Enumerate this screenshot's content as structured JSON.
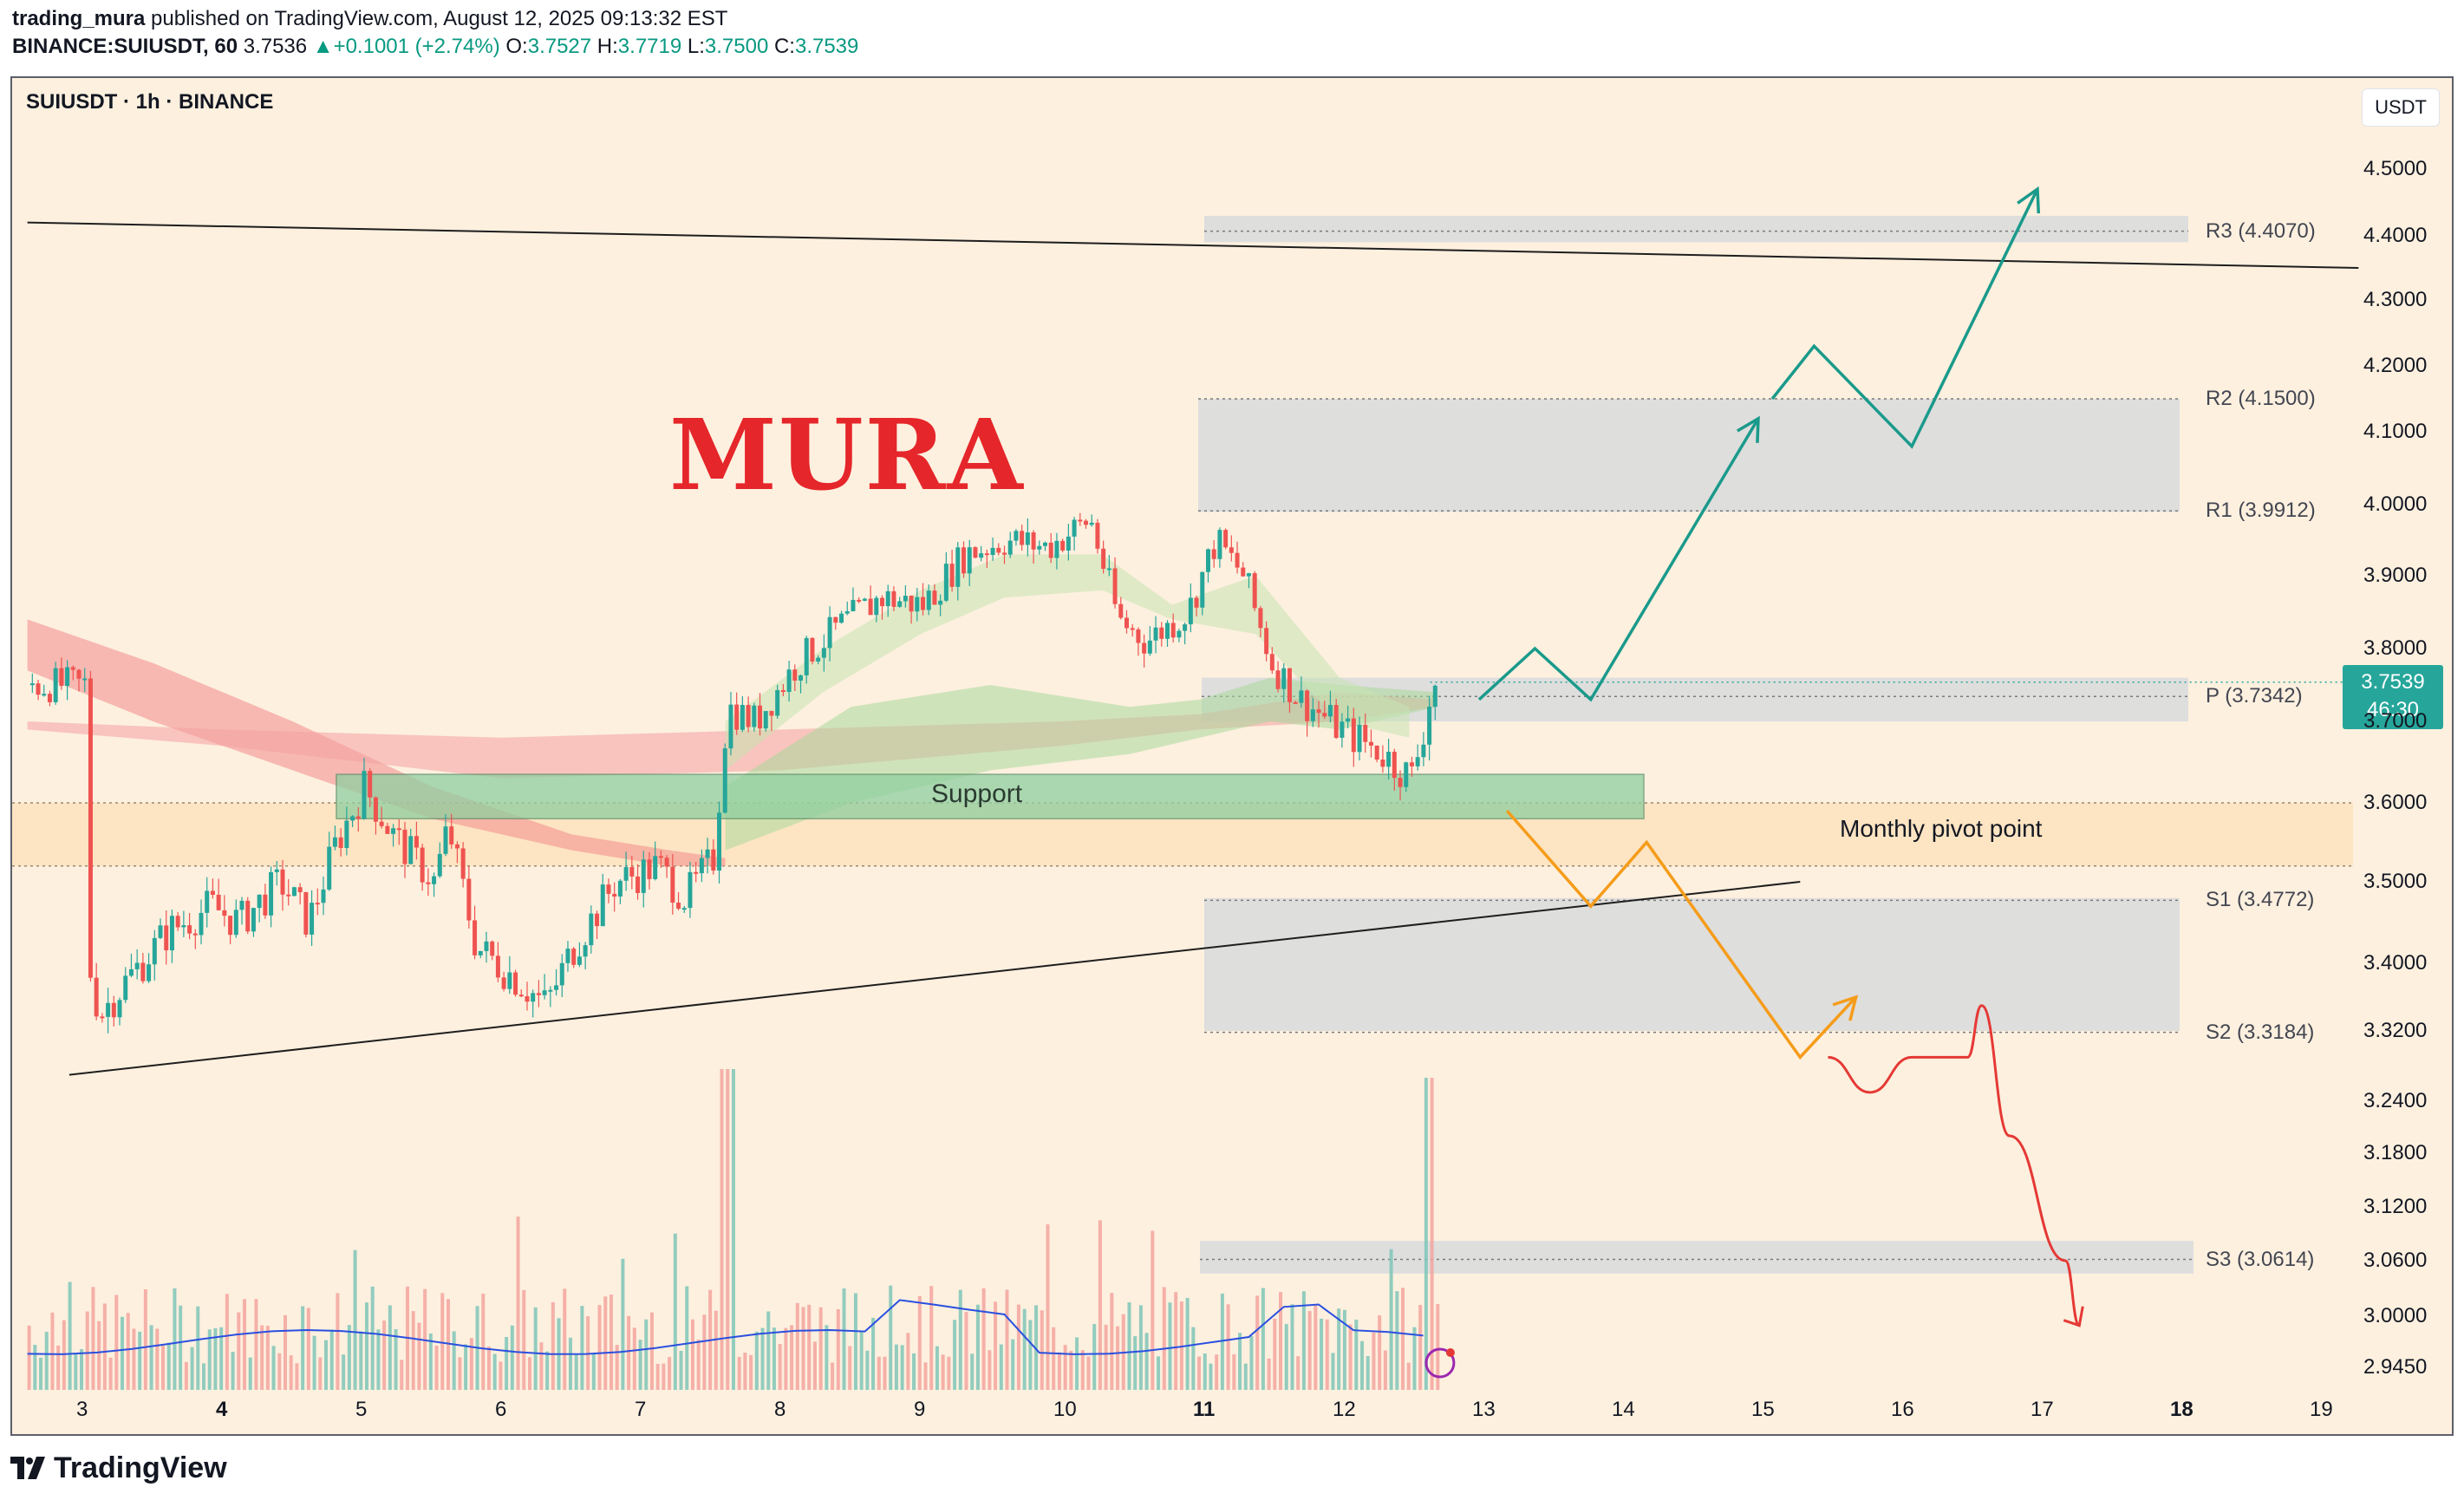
{
  "header": {
    "author": "trading_mura",
    "published_text": "published on TradingView.com, August 12, 2025 09:13:32 EST",
    "symbol_line": "BINANCE:SUIUSDT, 60",
    "last": "3.7536",
    "change": "+0.1001 (+2.74%)",
    "o_label": "O:",
    "o": "3.7527",
    "h_label": "H:",
    "h": "3.7719",
    "l_label": "L:",
    "l": "3.7500",
    "c_label": "C:",
    "c": "3.7539"
  },
  "legend_title": "SUIUSDT · 1h · BINANCE",
  "currency": "USDT",
  "brand_text": "MURA",
  "price_tag": {
    "price": "3.7539",
    "countdown": "46:30"
  },
  "footer": {
    "logo_text": "TradingView"
  },
  "chart_data": {
    "type": "candlestick",
    "symbol": "SUIUSDT",
    "interval": "1h",
    "exchange": "BINANCE",
    "y_axis": {
      "ticks": [
        "4.5000",
        "4.4000",
        "4.3000",
        "4.2000",
        "4.1000",
        "4.0000",
        "3.9000",
        "3.8000",
        "3.7000",
        "3.6000",
        "3.5000",
        "3.4000",
        "3.3200",
        "3.2400",
        "3.1800",
        "3.1200",
        "3.0600",
        "3.0000",
        "2.9450"
      ],
      "tick_values": [
        4.5,
        4.4,
        4.3,
        4.2,
        4.1,
        4.0,
        3.9,
        3.8,
        3.7,
        3.6,
        3.5,
        3.4,
        3.32,
        3.24,
        3.18,
        3.12,
        3.06,
        3.0,
        2.945
      ]
    },
    "x_axis": {
      "ticks": [
        "3",
        "4",
        "5",
        "6",
        "7",
        "8",
        "9",
        "10",
        "11",
        "12",
        "13",
        "14",
        "15",
        "16",
        "17",
        "18",
        "19"
      ],
      "bold_ticks": [
        "4",
        "11",
        "18"
      ]
    },
    "price_path": [
      [
        3.0,
        3.42
      ],
      [
        3.1,
        3.34
      ],
      [
        3.3,
        3.38
      ],
      [
        3.6,
        3.44
      ],
      [
        3.9,
        3.47
      ],
      [
        4.1,
        3.45
      ],
      [
        4.4,
        3.5
      ],
      [
        4.6,
        3.45
      ],
      [
        4.8,
        3.55
      ],
      [
        5.0,
        3.62
      ],
      [
        5.2,
        3.56
      ],
      [
        5.5,
        3.5
      ],
      [
        5.6,
        3.57
      ],
      [
        5.8,
        3.42
      ],
      [
        6.1,
        3.38
      ],
      [
        6.3,
        3.35
      ],
      [
        6.5,
        3.42
      ],
      [
        6.8,
        3.5
      ],
      [
        7.1,
        3.52
      ],
      [
        7.3,
        3.48
      ],
      [
        7.5,
        3.53
      ],
      [
        7.6,
        3.72
      ],
      [
        7.8,
        3.7
      ],
      [
        8.1,
        3.78
      ],
      [
        8.4,
        3.83
      ],
      [
        8.7,
        3.87
      ],
      [
        9.0,
        3.86
      ],
      [
        9.3,
        3.93
      ],
      [
        9.6,
        3.95
      ],
      [
        9.9,
        3.94
      ],
      [
        10.2,
        3.98
      ],
      [
        10.4,
        3.84
      ],
      [
        10.6,
        3.81
      ],
      [
        10.9,
        3.85
      ],
      [
        11.1,
        3.95
      ],
      [
        11.3,
        3.9
      ],
      [
        11.5,
        3.78
      ],
      [
        11.7,
        3.73
      ],
      [
        12.0,
        3.69
      ],
      [
        12.3,
        3.66
      ],
      [
        12.5,
        3.63
      ],
      [
        12.6,
        3.7
      ],
      [
        12.65,
        3.75
      ]
    ],
    "support_zone": {
      "label": "Support",
      "top": 3.635,
      "bottom": 3.58
    },
    "monthly_pivot": {
      "label": "Monthly pivot point",
      "top": 3.6,
      "bottom": 3.52,
      "level": 3.6
    },
    "pivot_levels": [
      {
        "name": "R3",
        "label": "R3 (4.4070)",
        "value": 4.407,
        "zone": [
          4.43,
          4.39
        ]
      },
      {
        "name": "R2",
        "label": "R2 (4.1500)",
        "value": 4.15,
        "zone": [
          4.15,
          3.99
        ]
      },
      {
        "name": "R1",
        "label": "R1 (3.9912)",
        "value": 3.9912,
        "zone": null
      },
      {
        "name": "P",
        "label": "P (3.7342)",
        "value": 3.7342,
        "zone": [
          3.76,
          3.7
        ]
      },
      {
        "name": "S1",
        "label": "S1 (3.4772)",
        "value": 3.4772,
        "zone": [
          3.48,
          3.32
        ]
      },
      {
        "name": "S2",
        "label": "S2 (3.3184)",
        "value": 3.3184,
        "zone": null
      },
      {
        "name": "S3",
        "label": "S3 (3.0614)",
        "value": 3.0614,
        "zone": [
          3.082,
          3.046
        ]
      }
    ],
    "trendlines": [
      {
        "name": "upper",
        "from": [
          2.6,
          4.42
        ],
        "to": [
          19.3,
          4.35
        ]
      },
      {
        "name": "lower",
        "from": [
          2.9,
          3.27
        ],
        "to": [
          15.3,
          3.5
        ]
      }
    ],
    "scenarios": {
      "bullish": [
        [
          13.0,
          3.73
        ],
        [
          13.4,
          3.8
        ],
        [
          13.8,
          3.73
        ],
        [
          15.0,
          4.12
        ]
      ],
      "bullish2": [
        [
          15.1,
          4.15
        ],
        [
          15.4,
          4.23
        ],
        [
          16.1,
          4.08
        ],
        [
          17.0,
          4.47
        ]
      ],
      "bearish": [
        [
          13.2,
          3.59
        ],
        [
          13.8,
          3.47
        ],
        [
          14.2,
          3.55
        ],
        [
          15.3,
          3.29
        ],
        [
          15.7,
          3.36
        ]
      ],
      "breakdown": [
        [
          15.5,
          3.29
        ],
        [
          15.8,
          3.25
        ],
        [
          16.1,
          3.29
        ],
        [
          16.5,
          3.29
        ],
        [
          16.6,
          3.35
        ],
        [
          16.8,
          3.2
        ],
        [
          17.2,
          3.06
        ],
        [
          17.3,
          2.99
        ]
      ]
    },
    "colors": {
      "bullish_candle": "#26a69a",
      "bearish_candle": "#ef5350",
      "bullish_arrow": "#1a9a8b",
      "bearish_arrow": "#f59c1a",
      "breakdown_arrow": "#e53935",
      "support_fill": "#8fcfa0",
      "monthly_pivot_fill": "#fde2bd",
      "zone_fill": "#dcdcdc",
      "volume_ma": "#2a4fe0",
      "background": "#fdf0df"
    }
  }
}
